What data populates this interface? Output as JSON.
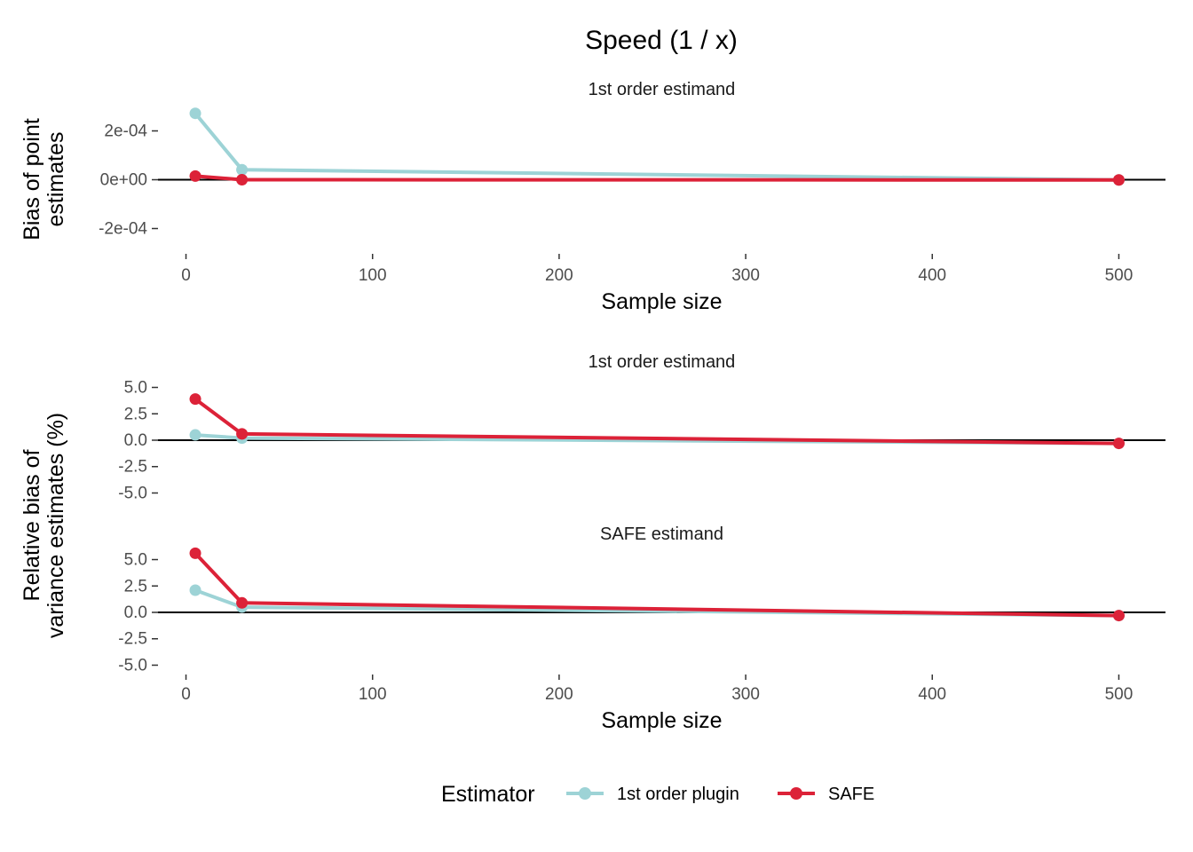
{
  "title": "Speed (1 / x)",
  "colors": {
    "plugin": "#9DD3D6",
    "safe": "#DC2238",
    "zero_line": "#000000"
  },
  "legend": {
    "title": "Estimator",
    "items": [
      "1st order plugin",
      "SAFE"
    ]
  },
  "chart_data": [
    {
      "type": "line",
      "strip": "1st order estimand",
      "xlabel": "Sample size",
      "ylabel_lines": [
        "Bias of point",
        "estimates"
      ],
      "xlim": [
        -15,
        525
      ],
      "ylim": [
        -0.0003,
        0.0003
      ],
      "xticks": [
        0,
        100,
        200,
        300,
        400,
        500
      ],
      "xtick_labels": [
        "0",
        "100",
        "200",
        "300",
        "400",
        "500"
      ],
      "yticks": [
        0.0002,
        0,
        -0.0002
      ],
      "ytick_labels": [
        "2e-04",
        "0e+00",
        "-2e-04"
      ],
      "x": [
        5,
        30,
        500
      ],
      "series": [
        {
          "name": "1st order plugin",
          "values": [
            0.000272,
            4.1e-05,
            -1e-06
          ]
        },
        {
          "name": "SAFE",
          "values": [
            1.5e-05,
            0.0,
            -1e-06
          ]
        }
      ]
    },
    {
      "type": "line",
      "strip": "1st order estimand",
      "xlim": [
        -15,
        525
      ],
      "ylim": [
        -5.8,
        5.8
      ],
      "xticks": [
        0,
        100,
        200,
        300,
        400,
        500
      ],
      "yticks": [
        5.0,
        2.5,
        0.0,
        -2.5,
        -5.0
      ],
      "ytick_labels": [
        "5.0",
        "2.5",
        "0.0",
        "-2.5",
        "-5.0"
      ],
      "x": [
        5,
        30,
        500
      ],
      "series": [
        {
          "name": "1st order plugin",
          "values": [
            0.5,
            0.2,
            -0.3
          ]
        },
        {
          "name": "SAFE",
          "values": [
            3.9,
            0.6,
            -0.3
          ]
        }
      ]
    },
    {
      "type": "line",
      "strip": "SAFE estimand",
      "xlabel": "Sample size",
      "ylabel_lines": [
        "Relative bias of",
        "variance estimates (%)"
      ],
      "xlim": [
        -15,
        525
      ],
      "ylim": [
        -5.8,
        5.8
      ],
      "xticks": [
        0,
        100,
        200,
        300,
        400,
        500
      ],
      "xtick_labels": [
        "0",
        "100",
        "200",
        "300",
        "400",
        "500"
      ],
      "yticks": [
        5.0,
        2.5,
        0.0,
        -2.5,
        -5.0
      ],
      "ytick_labels": [
        "5.0",
        "2.5",
        "0.0",
        "-2.5",
        "-5.0"
      ],
      "x": [
        5,
        30,
        500
      ],
      "series": [
        {
          "name": "1st order plugin",
          "values": [
            2.1,
            0.5,
            -0.3
          ]
        },
        {
          "name": "SAFE",
          "values": [
            5.6,
            0.9,
            -0.3
          ]
        }
      ]
    }
  ]
}
